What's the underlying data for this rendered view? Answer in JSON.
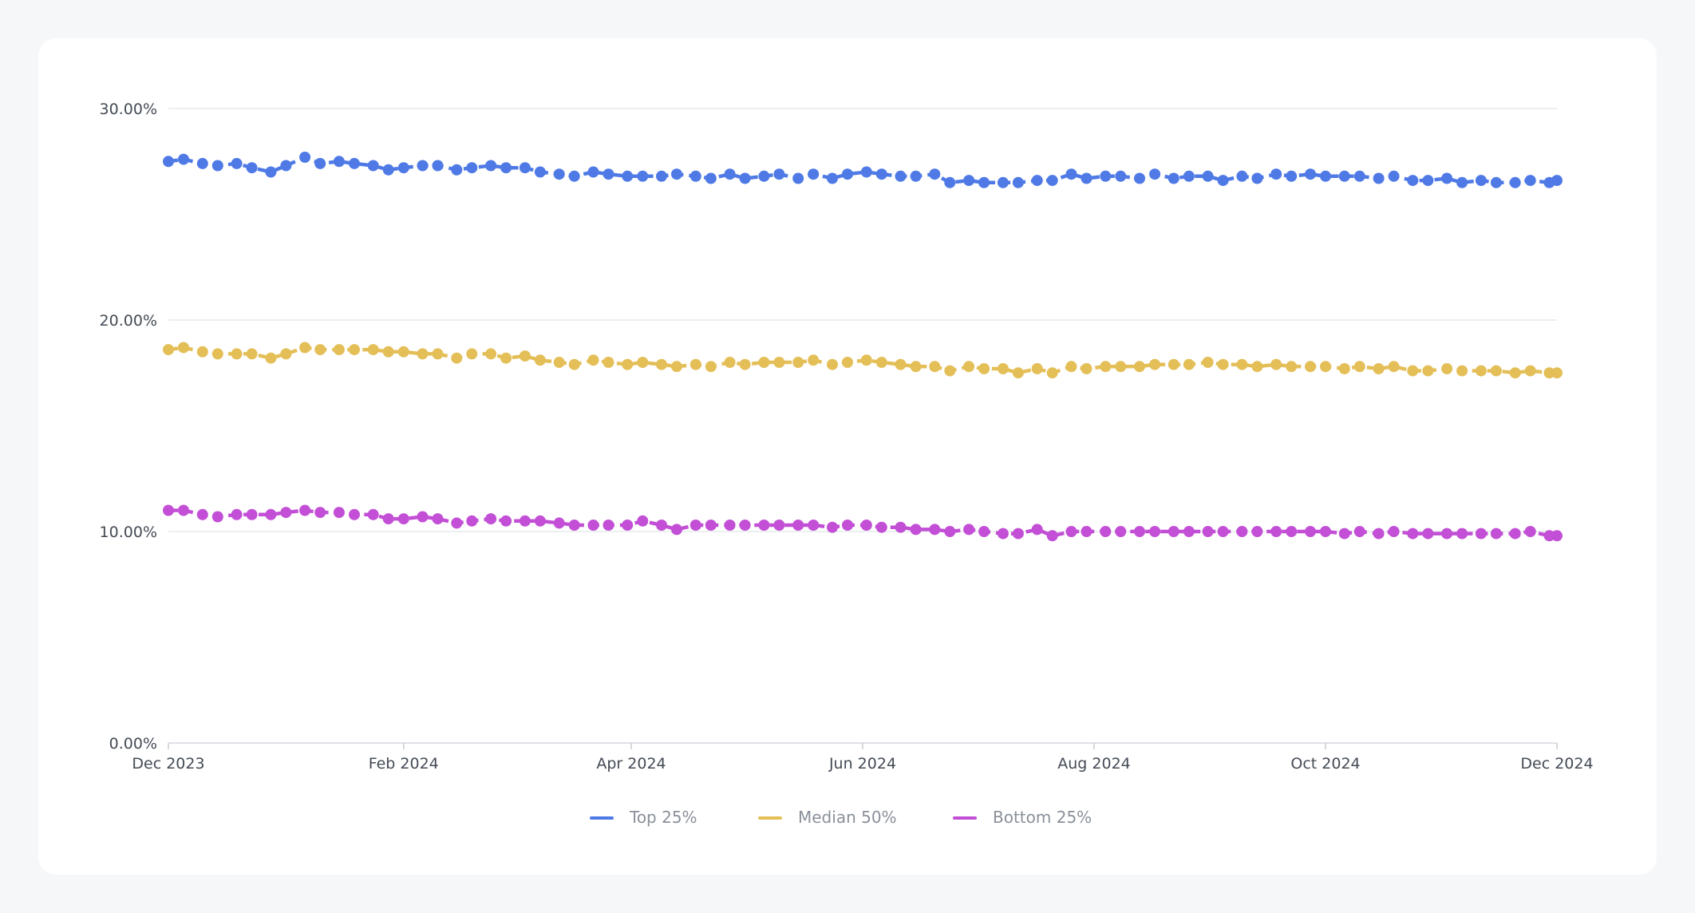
{
  "chart_data": {
    "type": "line",
    "title": "",
    "xlabel": "",
    "ylabel": "",
    "x_range": [
      "2023-12-01",
      "2024-12-01"
    ],
    "ylim": [
      0,
      30
    ],
    "y_ticks": [
      "0.00%",
      "10.00%",
      "20.00%",
      "30.00%"
    ],
    "y_tick_values": [
      0,
      10,
      20,
      30
    ],
    "x_ticks": [
      {
        "label": "Dec 2023",
        "date": "2023-12-01"
      },
      {
        "label": "Feb 2024",
        "date": "2024-02-01"
      },
      {
        "label": "Apr 2024",
        "date": "2024-04-01"
      },
      {
        "label": "Jun 2024",
        "date": "2024-06-01"
      },
      {
        "label": "Aug 2024",
        "date": "2024-08-01"
      },
      {
        "label": "Oct 2024",
        "date": "2024-10-01"
      },
      {
        "label": "Dec 2024",
        "date": "2024-12-01"
      }
    ],
    "grid": true,
    "legend_position": "bottom-center",
    "line_style": "dashed with markers",
    "x": [
      "2023-12-01",
      "2023-12-05",
      "2023-12-10",
      "2023-12-14",
      "2023-12-19",
      "2023-12-23",
      "2023-12-28",
      "2024-01-01",
      "2024-01-06",
      "2024-01-10",
      "2024-01-15",
      "2024-01-19",
      "2024-01-24",
      "2024-01-28",
      "2024-02-01",
      "2024-02-06",
      "2024-02-10",
      "2024-02-15",
      "2024-02-19",
      "2024-02-24",
      "2024-02-28",
      "2024-03-04",
      "2024-03-08",
      "2024-03-13",
      "2024-03-17",
      "2024-03-22",
      "2024-03-26",
      "2024-03-31",
      "2024-04-04",
      "2024-04-09",
      "2024-04-13",
      "2024-04-18",
      "2024-04-22",
      "2024-04-27",
      "2024-05-01",
      "2024-05-06",
      "2024-05-10",
      "2024-05-15",
      "2024-05-19",
      "2024-05-24",
      "2024-05-28",
      "2024-06-02",
      "2024-06-06",
      "2024-06-11",
      "2024-06-15",
      "2024-06-20",
      "2024-06-24",
      "2024-06-29",
      "2024-07-03",
      "2024-07-08",
      "2024-07-12",
      "2024-07-17",
      "2024-07-21",
      "2024-07-26",
      "2024-07-30",
      "2024-08-04",
      "2024-08-08",
      "2024-08-13",
      "2024-08-17",
      "2024-08-22",
      "2024-08-26",
      "2024-08-31",
      "2024-09-04",
      "2024-09-09",
      "2024-09-13",
      "2024-09-18",
      "2024-09-22",
      "2024-09-27",
      "2024-10-01",
      "2024-10-06",
      "2024-10-10",
      "2024-10-15",
      "2024-10-19",
      "2024-10-24",
      "2024-10-28",
      "2024-11-02",
      "2024-11-06",
      "2024-11-11",
      "2024-11-15",
      "2024-11-20",
      "2024-11-24",
      "2024-11-29",
      "2024-12-01"
    ],
    "series": [
      {
        "name": "Top 25%",
        "color": "#4f7ae6",
        "values": [
          27.5,
          27.6,
          27.4,
          27.3,
          27.4,
          27.2,
          27.0,
          27.3,
          27.7,
          27.4,
          27.5,
          27.4,
          27.3,
          27.1,
          27.2,
          27.3,
          27.3,
          27.1,
          27.2,
          27.3,
          27.2,
          27.2,
          27.0,
          26.9,
          26.8,
          27.0,
          26.9,
          26.8,
          26.8,
          26.8,
          26.9,
          26.8,
          26.7,
          26.9,
          26.7,
          26.8,
          26.9,
          26.7,
          26.9,
          26.7,
          26.9,
          27.0,
          26.9,
          26.8,
          26.8,
          26.9,
          26.5,
          26.6,
          26.5,
          26.5,
          26.5,
          26.6,
          26.6,
          26.9,
          26.7,
          26.8,
          26.8,
          26.7,
          26.9,
          26.7,
          26.8,
          26.8,
          26.6,
          26.8,
          26.7,
          26.9,
          26.8,
          26.9,
          26.8,
          26.8,
          26.8,
          26.7,
          26.8,
          26.6,
          26.6,
          26.7,
          26.5,
          26.6,
          26.5,
          26.5,
          26.6,
          26.5,
          26.6
        ]
      },
      {
        "name": "Median 50%",
        "color": "#e4bf58",
        "values": [
          18.6,
          18.7,
          18.5,
          18.4,
          18.4,
          18.4,
          18.2,
          18.4,
          18.7,
          18.6,
          18.6,
          18.6,
          18.6,
          18.5,
          18.5,
          18.4,
          18.4,
          18.2,
          18.4,
          18.4,
          18.2,
          18.3,
          18.1,
          18.0,
          17.9,
          18.1,
          18.0,
          17.9,
          18.0,
          17.9,
          17.8,
          17.9,
          17.8,
          18.0,
          17.9,
          18.0,
          18.0,
          18.0,
          18.1,
          17.9,
          18.0,
          18.1,
          18.0,
          17.9,
          17.8,
          17.8,
          17.6,
          17.8,
          17.7,
          17.7,
          17.5,
          17.7,
          17.5,
          17.8,
          17.7,
          17.8,
          17.8,
          17.8,
          17.9,
          17.9,
          17.9,
          18.0,
          17.9,
          17.9,
          17.8,
          17.9,
          17.8,
          17.8,
          17.8,
          17.7,
          17.8,
          17.7,
          17.8,
          17.6,
          17.6,
          17.7,
          17.6,
          17.6,
          17.6,
          17.5,
          17.6,
          17.5,
          17.5
        ]
      },
      {
        "name": "Bottom 25%",
        "color": "#c24fd6",
        "values": [
          11.0,
          11.0,
          10.8,
          10.7,
          10.8,
          10.8,
          10.8,
          10.9,
          11.0,
          10.9,
          10.9,
          10.8,
          10.8,
          10.6,
          10.6,
          10.7,
          10.6,
          10.4,
          10.5,
          10.6,
          10.5,
          10.5,
          10.5,
          10.4,
          10.3,
          10.3,
          10.3,
          10.3,
          10.5,
          10.3,
          10.1,
          10.3,
          10.3,
          10.3,
          10.3,
          10.3,
          10.3,
          10.3,
          10.3,
          10.2,
          10.3,
          10.3,
          10.2,
          10.2,
          10.1,
          10.1,
          10.0,
          10.1,
          10.0,
          9.9,
          9.9,
          10.1,
          9.8,
          10.0,
          10.0,
          10.0,
          10.0,
          10.0,
          10.0,
          10.0,
          10.0,
          10.0,
          10.0,
          10.0,
          10.0,
          10.0,
          10.0,
          10.0,
          10.0,
          9.9,
          10.0,
          9.9,
          10.0,
          9.9,
          9.9,
          9.9,
          9.9,
          9.9,
          9.9,
          9.9,
          10.0,
          9.8,
          9.8
        ]
      }
    ]
  }
}
